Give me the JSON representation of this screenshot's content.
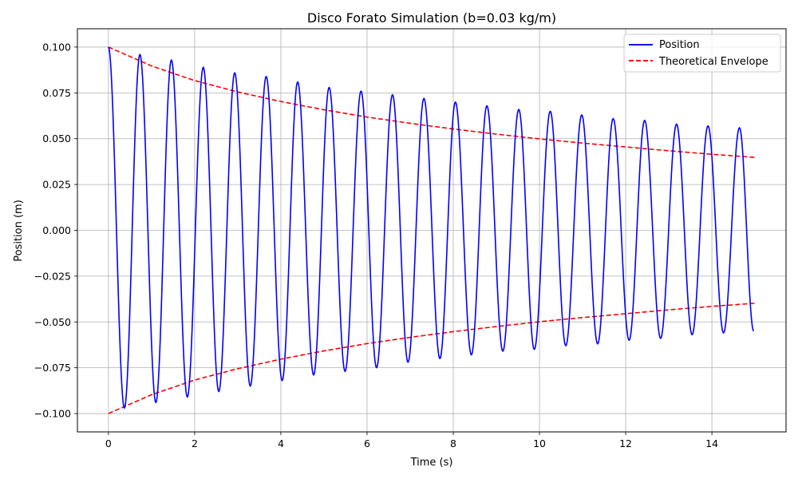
{
  "chart_data": {
    "type": "line",
    "title": "Disco Forato Simulation (b=0.03 kg/m)",
    "xlabel": "Time (s)",
    "ylabel": "Position (m)",
    "xlim": [
      -0.72,
      15.72
    ],
    "ylim": [
      -0.11,
      0.11
    ],
    "x_ticks": [
      0,
      2,
      4,
      6,
      8,
      10,
      12,
      14
    ],
    "x_tick_labels": [
      "0",
      "2",
      "4",
      "6",
      "8",
      "10",
      "12",
      "14"
    ],
    "y_ticks": [
      -0.1,
      -0.075,
      -0.05,
      -0.025,
      0.0,
      0.025,
      0.05,
      0.075,
      0.1
    ],
    "y_tick_labels": [
      "−0.100",
      "−0.075",
      "−0.050",
      "−0.025",
      "0.000",
      "0.025",
      "0.050",
      "0.075",
      "0.100"
    ],
    "grid": true,
    "legend_position": "top-right",
    "series": [
      {
        "name": "Position",
        "color": "#0000ff",
        "style": "solid",
        "x": [
          0,
          0.37,
          0.73,
          1.1,
          1.46,
          1.83,
          2.2,
          2.56,
          2.93,
          3.29,
          3.66,
          4.03,
          4.39,
          4.76,
          5.12,
          5.49,
          5.86,
          6.22,
          6.59,
          6.95,
          7.32,
          7.69,
          8.05,
          8.42,
          8.78,
          9.15,
          9.52,
          9.88,
          10.25,
          10.61,
          10.98,
          11.35,
          11.71,
          12.08,
          12.44,
          12.81,
          13.18,
          13.54,
          13.91,
          14.27,
          14.64,
          14.97
        ],
        "y": [
          0.1,
          -0.097,
          0.096,
          -0.094,
          0.093,
          -0.091,
          0.089,
          -0.088,
          0.086,
          -0.085,
          0.084,
          -0.082,
          0.081,
          -0.079,
          0.078,
          -0.077,
          0.076,
          -0.075,
          0.074,
          -0.072,
          0.072,
          -0.07,
          0.07,
          -0.068,
          0.068,
          -0.066,
          0.066,
          -0.065,
          0.065,
          -0.063,
          0.063,
          -0.062,
          0.061,
          -0.06,
          0.06,
          -0.059,
          0.058,
          -0.057,
          0.057,
          -0.056,
          0.056,
          -0.055
        ]
      },
      {
        "name": "Theoretical Envelope",
        "color": "#ff0000",
        "style": "dashed",
        "x": [
          0,
          1,
          2,
          3,
          4,
          5,
          6,
          7,
          8,
          9,
          10,
          11,
          12,
          13,
          14,
          15
        ],
        "y": [
          0.1,
          0.0897,
          0.0817,
          0.0755,
          0.0703,
          0.0658,
          0.0618,
          0.0584,
          0.0553,
          0.0525,
          0.0499,
          0.0476,
          0.0455,
          0.0434,
          0.0415,
          0.0398
        ]
      },
      {
        "color": "#ff0000",
        "style": "dashed",
        "x": [
          0,
          1,
          2,
          3,
          4,
          5,
          6,
          7,
          8,
          9,
          10,
          11,
          12,
          13,
          14,
          15
        ],
        "y": [
          -0.1,
          -0.0897,
          -0.0817,
          -0.0755,
          -0.0703,
          -0.0658,
          -0.0618,
          -0.0584,
          -0.0553,
          -0.0525,
          -0.0499,
          -0.0476,
          -0.0455,
          -0.0434,
          -0.0415,
          -0.0398
        ]
      }
    ]
  }
}
